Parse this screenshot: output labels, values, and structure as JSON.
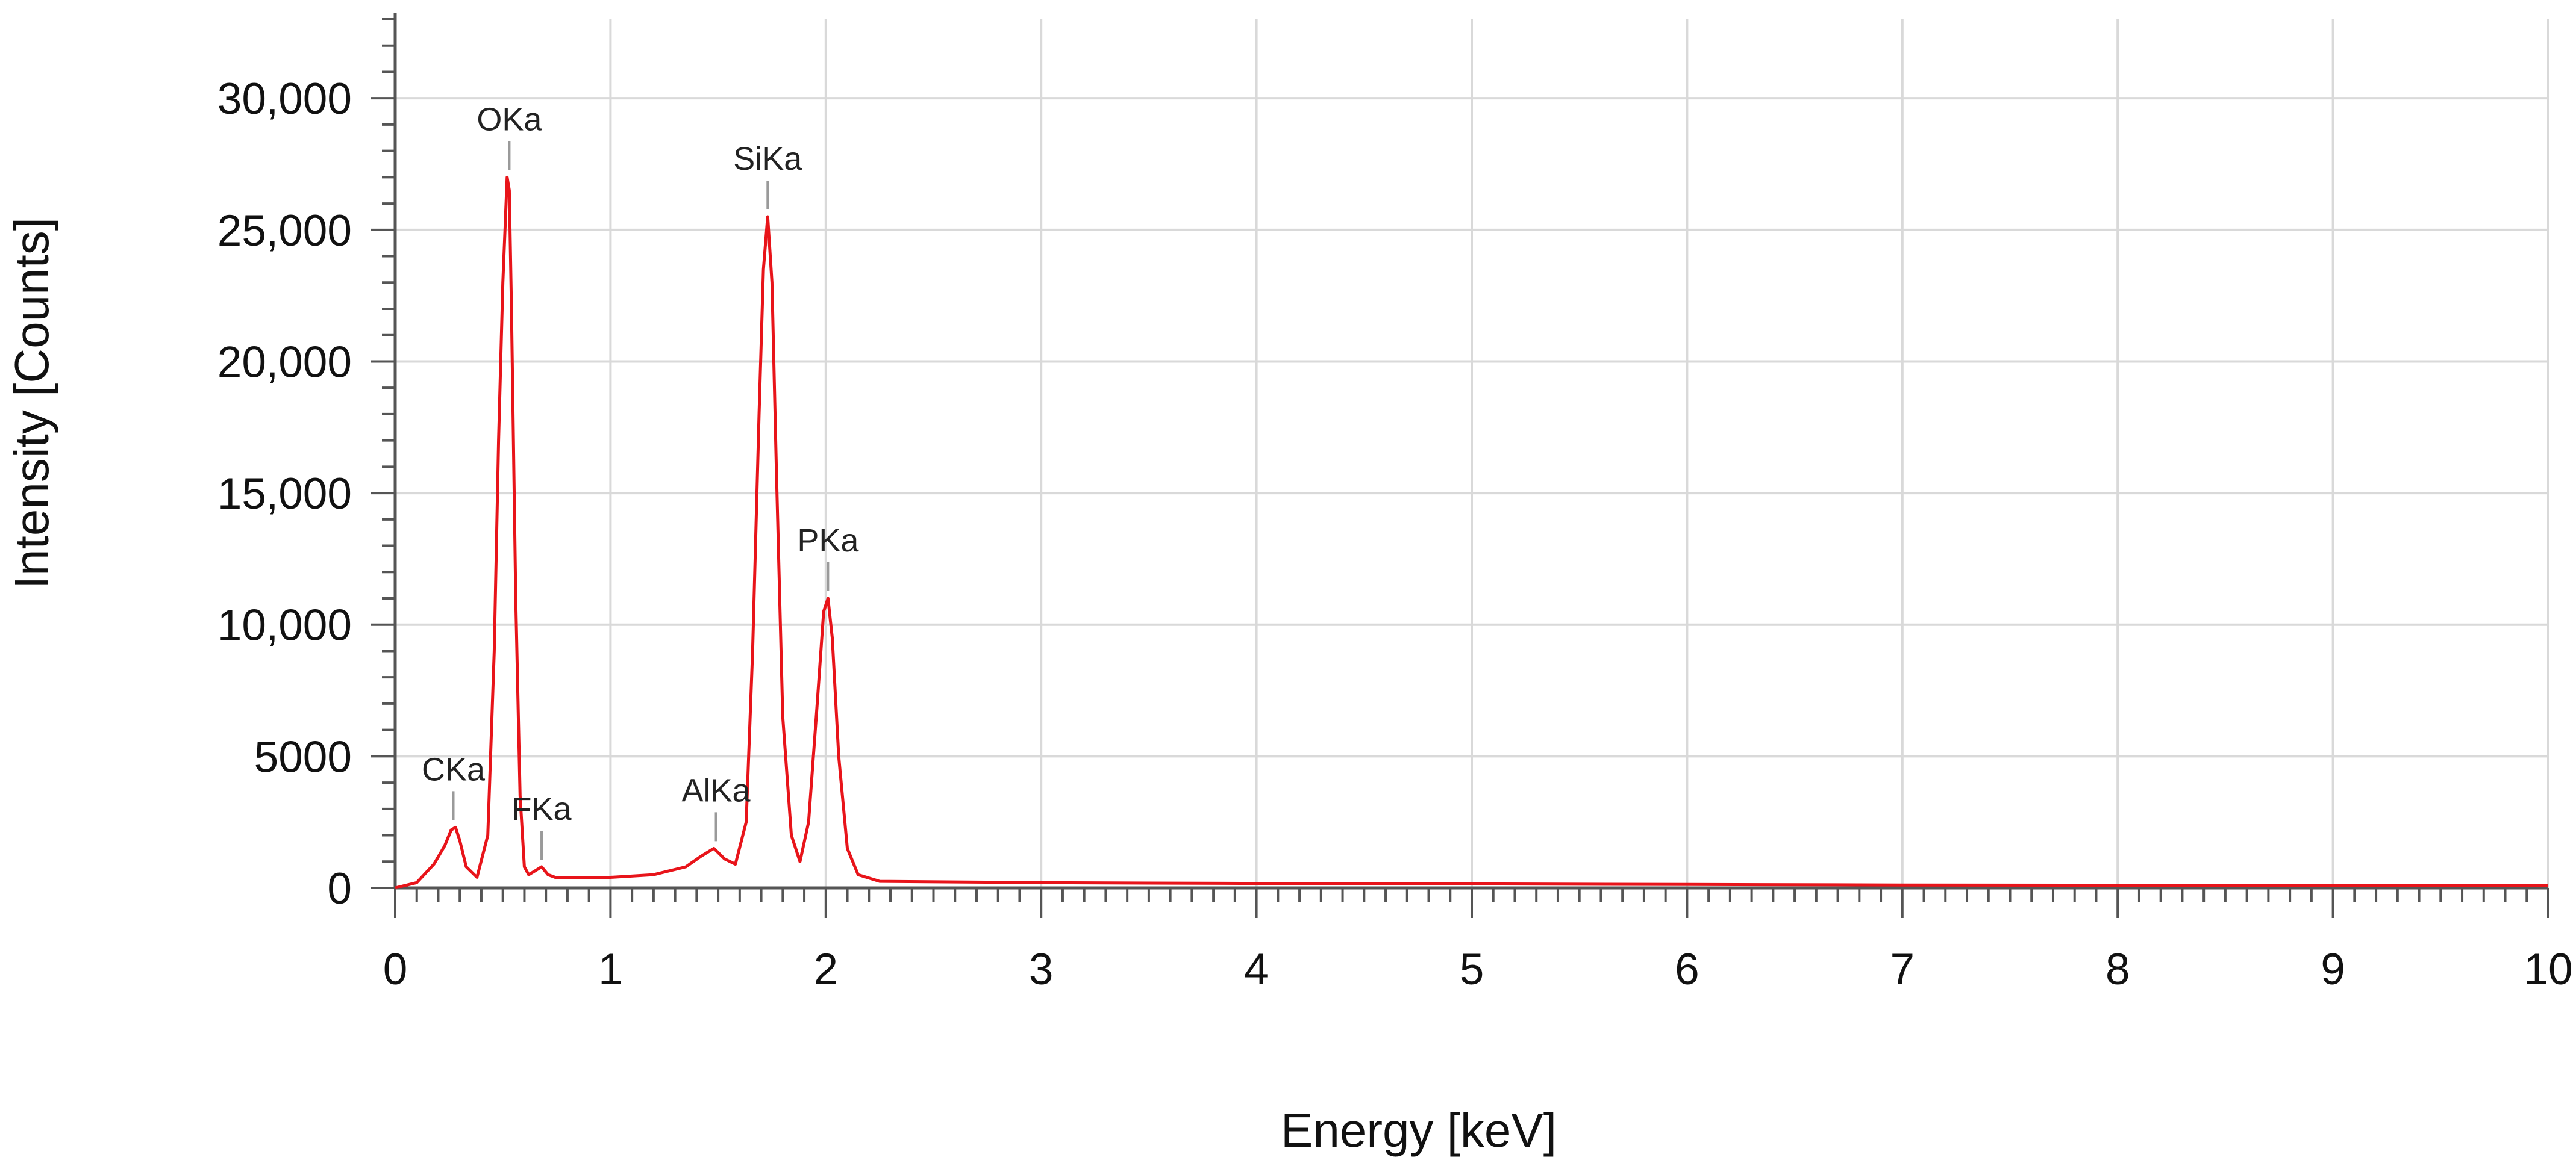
{
  "chart_data": {
    "type": "line",
    "title": "",
    "xlabel": "Energy [keV]",
    "ylabel": "Intensity [Counts]",
    "xlim": [
      0,
      10
    ],
    "ylim": [
      0,
      33000
    ],
    "grid": true,
    "x_ticks": [
      {
        "value": 0,
        "label": "0"
      },
      {
        "value": 1,
        "label": "1"
      },
      {
        "value": 2,
        "label": "2"
      },
      {
        "value": 3,
        "label": "3"
      },
      {
        "value": 4,
        "label": "4"
      },
      {
        "value": 5,
        "label": "5"
      },
      {
        "value": 6,
        "label": "6"
      },
      {
        "value": 7,
        "label": "7"
      },
      {
        "value": 8,
        "label": "8"
      },
      {
        "value": 9,
        "label": "9"
      },
      {
        "value": 10,
        "label": "10"
      }
    ],
    "y_ticks": [
      {
        "value": 0,
        "label": "0"
      },
      {
        "value": 5000,
        "label": "5000"
      },
      {
        "value": 10000,
        "label": "10,000"
      },
      {
        "value": 15000,
        "label": "15,000"
      },
      {
        "value": 20000,
        "label": "20,000"
      },
      {
        "value": 25000,
        "label": "25,000"
      },
      {
        "value": 30000,
        "label": "30,000"
      }
    ],
    "series": [
      {
        "color": "#e8141a",
        "x": [
          0,
          0.1,
          0.18,
          0.23,
          0.26,
          0.28,
          0.3,
          0.33,
          0.38,
          0.43,
          0.46,
          0.48,
          0.5,
          0.52,
          0.53,
          0.54,
          0.56,
          0.58,
          0.6,
          0.62,
          0.65,
          0.68,
          0.71,
          0.75,
          0.85,
          1.0,
          1.2,
          1.35,
          1.42,
          1.48,
          1.53,
          1.58,
          1.63,
          1.66,
          1.69,
          1.71,
          1.73,
          1.75,
          1.77,
          1.8,
          1.84,
          1.88,
          1.92,
          1.96,
          1.99,
          2.01,
          2.03,
          2.06,
          2.1,
          2.15,
          2.25,
          3.0,
          4.0,
          5.0,
          6.0,
          7.0,
          8.0,
          9.0,
          10.0
        ],
        "values": [
          0,
          200,
          900,
          1600,
          2200,
          2300,
          1800,
          800,
          400,
          2000,
          9000,
          17000,
          23000,
          27000,
          26500,
          22000,
          11000,
          3500,
          800,
          500,
          650,
          800,
          500,
          380,
          380,
          400,
          500,
          800,
          1200,
          1500,
          1100,
          900,
          2500,
          9000,
          18000,
          23500,
          25500,
          23000,
          16000,
          6500,
          2000,
          1000,
          2500,
          7000,
          10500,
          11000,
          9500,
          5000,
          1500,
          500,
          250,
          200,
          170,
          150,
          130,
          110,
          100,
          90,
          80
        ]
      }
    ],
    "annotations": [
      {
        "label": "CKa",
        "x": 0.27,
        "y": 2300
      },
      {
        "label": "OKa",
        "x": 0.53,
        "y": 27000
      },
      {
        "label": "FKa",
        "x": 0.68,
        "y": 800
      },
      {
        "label": "AlKa",
        "x": 1.49,
        "y": 1500
      },
      {
        "label": "SiKa",
        "x": 1.73,
        "y": 25500
      },
      {
        "label": "PKa",
        "x": 2.01,
        "y": 11000
      }
    ]
  }
}
